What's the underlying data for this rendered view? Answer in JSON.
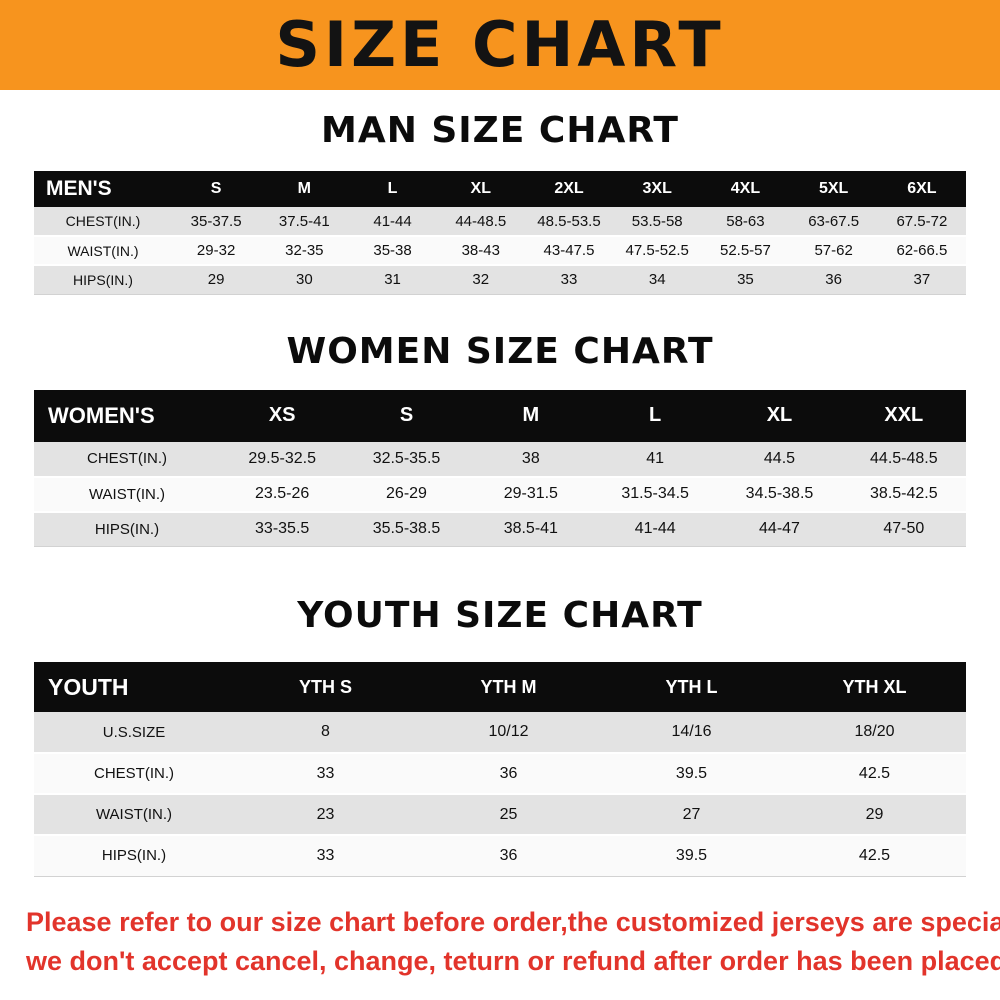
{
  "banner": {
    "title": "SIZE CHART",
    "bg_color": "#f7941e"
  },
  "sections": [
    {
      "heading": "MAN SIZE CHART",
      "table": {
        "title": "MEN'S",
        "columns": [
          "S",
          "M",
          "L",
          "XL",
          "2XL",
          "3XL",
          "4XL",
          "5XL",
          "6XL"
        ],
        "rows": [
          {
            "label": "CHEST(IN.)",
            "values": [
              "35-37.5",
              "37.5-41",
              "41-44",
              "44-48.5",
              "48.5-53.5",
              "53.5-58",
              "58-63",
              "63-67.5",
              "67.5-72"
            ]
          },
          {
            "label": "WAIST(IN.)",
            "values": [
              "29-32",
              "32-35",
              "35-38",
              "38-43",
              "43-47.5",
              "47.5-52.5",
              "52.5-57",
              "57-62",
              "62-66.5"
            ]
          },
          {
            "label": "HIPS(IN.)",
            "values": [
              "29",
              "30",
              "31",
              "32",
              "33",
              "34",
              "35",
              "36",
              "37"
            ]
          }
        ]
      }
    },
    {
      "heading": "WOMEN SIZE CHART",
      "table": {
        "title": "WOMEN'S",
        "columns": [
          "XS",
          "S",
          "M",
          "L",
          "XL",
          "XXL"
        ],
        "rows": [
          {
            "label": "CHEST(IN.)",
            "values": [
              "29.5-32.5",
              "32.5-35.5",
              "38",
              "41",
              "44.5",
              "44.5-48.5"
            ]
          },
          {
            "label": "WAIST(IN.)",
            "values": [
              "23.5-26",
              "26-29",
              "29-31.5",
              "31.5-34.5",
              "34.5-38.5",
              "38.5-42.5"
            ]
          },
          {
            "label": "HIPS(IN.)",
            "values": [
              "33-35.5",
              "35.5-38.5",
              "38.5-41",
              "41-44",
              "44-47",
              "47-50"
            ]
          }
        ]
      }
    },
    {
      "heading": "YOUTH SIZE CHART",
      "table": {
        "title": "YOUTH",
        "columns": [
          "YTH S",
          "YTH M",
          "YTH L",
          "YTH XL"
        ],
        "rows": [
          {
            "label": "U.S.SIZE",
            "values": [
              "8",
              "10/12",
              "14/16",
              "18/20"
            ]
          },
          {
            "label": "CHEST(IN.)",
            "values": [
              "33",
              "36",
              "39.5",
              "42.5"
            ]
          },
          {
            "label": "WAIST(IN.)",
            "values": [
              "23",
              "25",
              "27",
              "29"
            ]
          },
          {
            "label": "HIPS(IN.)",
            "values": [
              "33",
              "36",
              "39.5",
              "42.5"
            ]
          }
        ]
      }
    }
  ],
  "footer": {
    "line1": "Please refer to our size chart before order,the customized jerseys are special products,",
    "line2": "we don't accept cancel, change, teturn or refund after order has been placed!",
    "color": "#e2342b"
  }
}
